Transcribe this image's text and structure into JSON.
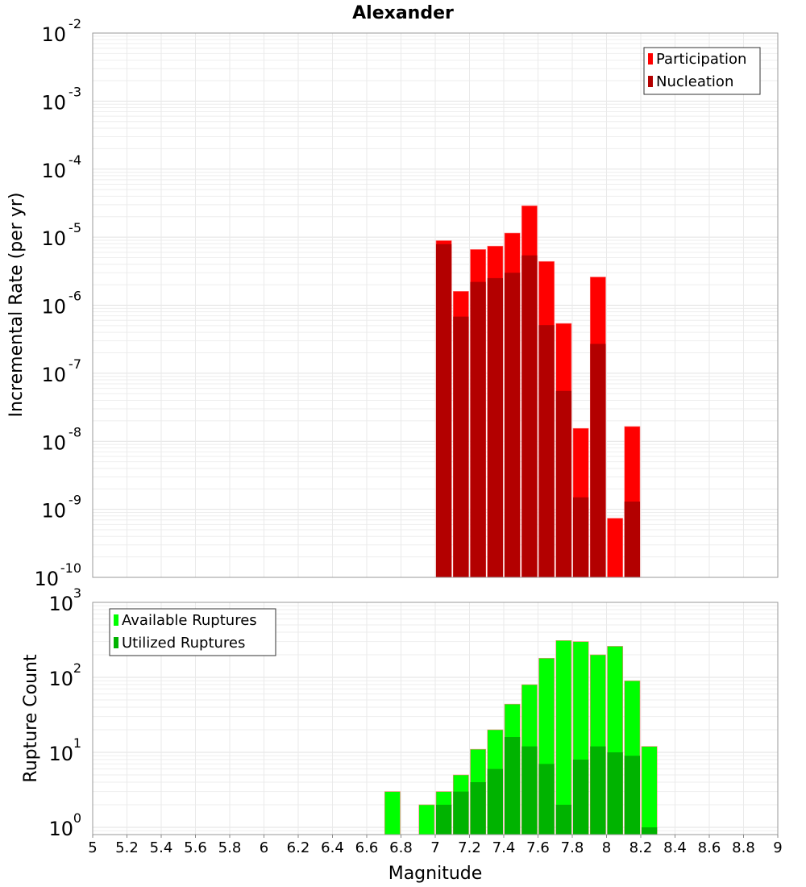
{
  "chart_data": [
    {
      "type": "bar",
      "title": "Alexander",
      "xlabel": "Magnitude",
      "ylabel": "Incremental Rate (per yr)",
      "yscale": "log",
      "xlim": [
        5,
        9
      ],
      "ylim": [
        1e-10,
        0.01
      ],
      "ytick_exponents": [
        -10,
        -9,
        -8,
        -7,
        -6,
        -5,
        -4,
        -3,
        -2
      ],
      "bar_width": 0.1,
      "legend": "top-right",
      "x": [
        7.05,
        7.15,
        7.25,
        7.35,
        7.45,
        7.55,
        7.65,
        7.75,
        7.85,
        7.95,
        8.05,
        8.15
      ],
      "series": [
        {
          "name": "Participation",
          "color": "#ff0000",
          "values": [
            8.9e-06,
            1.6e-06,
            6.6e-06,
            7.4e-06,
            1.15e-05,
            2.9e-05,
            4.4e-06,
            5.4e-07,
            1.55e-08,
            2.6e-06,
            7.4e-10,
            1.65e-08
          ]
        },
        {
          "name": "Nucleation",
          "color": "#b30000",
          "values": [
            7.9e-06,
            6.8e-07,
            2.2e-06,
            2.5e-06,
            3e-06,
            5.4e-06,
            5.1e-07,
            5.5e-08,
            1.5e-09,
            2.7e-07,
            null,
            1.3e-09
          ]
        }
      ]
    },
    {
      "type": "bar",
      "xlabel": "Magnitude",
      "ylabel": "Rupture Count",
      "yscale": "log",
      "xlim": [
        5,
        9
      ],
      "ylim": [
        0.8,
        1000
      ],
      "ytick_exponents": [
        0,
        1,
        2,
        3
      ],
      "xticks": [
        "5",
        "5.2",
        "5.4",
        "5.6",
        "5.8",
        "6",
        "6.2",
        "6.4",
        "6.6",
        "6.8",
        "7",
        "7.2",
        "7.4",
        "7.6",
        "7.8",
        "8",
        "8.2",
        "8.4",
        "8.6",
        "8.8",
        "9"
      ],
      "bar_width": 0.1,
      "legend": "top-left",
      "x": [
        6.75,
        6.95,
        7.05,
        7.15,
        7.25,
        7.35,
        7.45,
        7.55,
        7.65,
        7.75,
        7.85,
        7.95,
        8.05,
        8.15,
        8.25
      ],
      "series": [
        {
          "name": "Available Ruptures",
          "color": "#00ff00",
          "values": [
            3,
            2,
            3,
            5,
            11,
            20,
            44,
            80,
            180,
            310,
            300,
            200,
            260,
            90,
            12
          ]
        },
        {
          "name": "Utilized Ruptures",
          "color": "#00b300",
          "values": [
            null,
            null,
            2,
            3,
            4,
            6,
            16,
            12,
            7,
            2,
            8,
            12,
            10,
            9,
            1
          ]
        }
      ]
    }
  ]
}
